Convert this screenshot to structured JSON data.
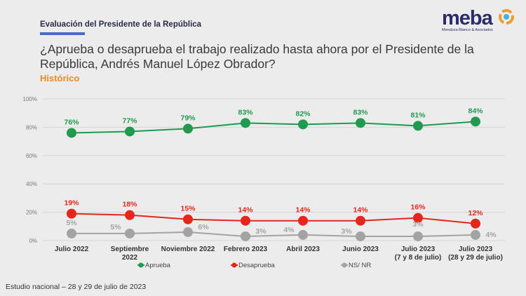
{
  "header": {
    "subtitle": "Evaluación del Presidente de la República",
    "question": "¿Aprueba o desaprueba el trabajo realizado hasta ahora por el Presidente de la República, Andrés Manuel López Obrador?",
    "section": "Histórico",
    "logo_name": "meba",
    "logo_tagline": "Mendoza Blanco & Asociados"
  },
  "footer": "Estudio nacional – 28 y 29 de julio de 2023",
  "chart_data": {
    "type": "line",
    "categories": [
      [
        "Julio 2022"
      ],
      [
        "Septiembre",
        "2022"
      ],
      [
        "Noviembre 2022"
      ],
      [
        "Febrero 2023"
      ],
      [
        "Abril 2023"
      ],
      [
        "Junio 2023"
      ],
      [
        "Julio 2023",
        "(7 y 8 de julio)"
      ],
      [
        "Julio 2023",
        "(28 y 29 de julio)"
      ]
    ],
    "ylim": [
      0,
      100
    ],
    "yticks": [
      "0%",
      "20%",
      "40%",
      "60%",
      "80%",
      "100%"
    ],
    "grid": true,
    "legend_position": "bottom",
    "series": [
      {
        "name": "Aprueba",
        "color": "#1f9a4e",
        "values": [
          76,
          77,
          79,
          83,
          82,
          83,
          81,
          84
        ],
        "labels": [
          "76%",
          "77%",
          "79%",
          "83%",
          "82%",
          "83%",
          "81%",
          "84%"
        ]
      },
      {
        "name": "Desaprueba",
        "color": "#e5261b",
        "values": [
          19,
          18,
          15,
          14,
          14,
          14,
          16,
          12
        ],
        "labels": [
          "19%",
          "18%",
          "15%",
          "14%",
          "14%",
          "14%",
          "16%",
          "12%"
        ]
      },
      {
        "name": "NS/ NR",
        "color": "#a3a3a3",
        "values": [
          5,
          5,
          6,
          3,
          4,
          3,
          3,
          4
        ],
        "labels": [
          "5%",
          "5%",
          "6%",
          "3%",
          "4%",
          "3%",
          "3%",
          "4%"
        ]
      }
    ]
  }
}
